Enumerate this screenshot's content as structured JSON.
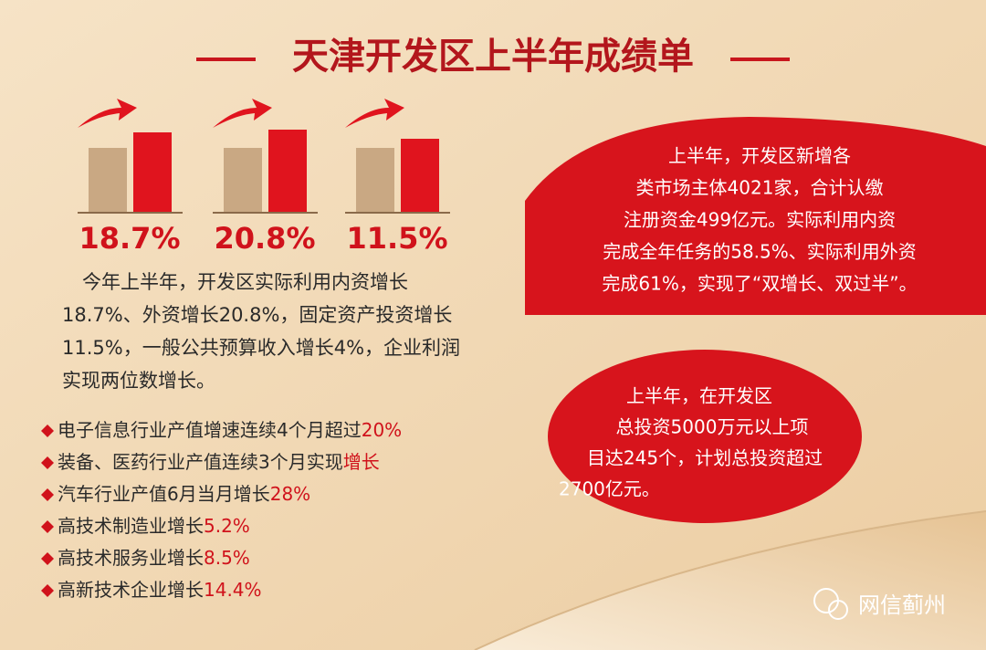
{
  "title": "天津开发区上半年成绩单",
  "stats": [
    "18.7%",
    "20.8%",
    "11.5%"
  ],
  "paragraph": [
    "今年上半年，开发区实际利用内资增长",
    "18.7%、外资增长20.8%，固定资产投资增长",
    "11.5%，一般公共预算收入增长4%，企业利润",
    "实现两位数增长。"
  ],
  "bullets": [
    {
      "text": "电子信息行业产值增速连续4个月超过",
      "highlight": "20%"
    },
    {
      "text": "装备、医药行业产值连续3个月实现",
      "highlight": "增长"
    },
    {
      "text": "汽车行业产值6月当月增长",
      "highlight": "28%"
    },
    {
      "text": "高技术制造业增长",
      "highlight": "5.2%"
    },
    {
      "text": "高技术服务业增长",
      "highlight": "8.5%"
    },
    {
      "text": "高新技术企业增长",
      "highlight": "14.4%"
    }
  ],
  "callout_1": [
    "上半年，开发区新增各",
    "类市场主体4021家，合计认缴",
    "注册资金499亿元。实际利用内资",
    "完成全年任务的58.5%、实际利用外资",
    "完成61%，实现了“双增长、双过半”。"
  ],
  "callout_2": [
    "上半年，在开发区",
    "总投资5000万元以上项",
    "目达245个，计划总投资超过",
    "2700亿元。"
  ],
  "watermark": "网信蓟州"
}
